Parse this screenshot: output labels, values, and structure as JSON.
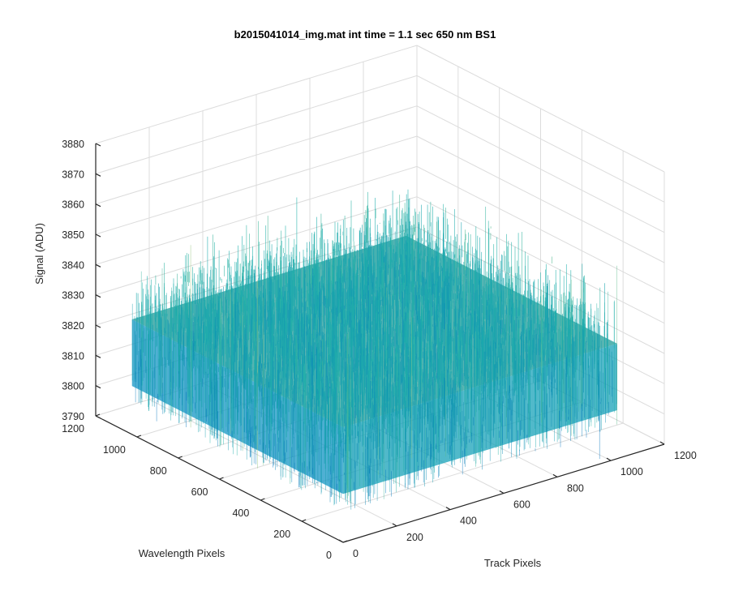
{
  "chart_data": {
    "type": "surface",
    "title": "b2015041014_img.mat int time = 1.1 sec  650 nm BS1",
    "xlabel": "Track Pixels",
    "ylabel": "Wavelength Pixels",
    "zlabel": "Signal (ADU)",
    "xlim": [
      0,
      1200
    ],
    "ylim": [
      0,
      1200
    ],
    "zlim": [
      3790,
      3880
    ],
    "x_ticks": [
      0,
      200,
      400,
      600,
      800,
      1000,
      1200
    ],
    "y_ticks": [
      0,
      200,
      400,
      600,
      800,
      1000,
      1200
    ],
    "z_ticks": [
      3790,
      3800,
      3810,
      3820,
      3830,
      3840,
      3850,
      3860,
      3870,
      3880
    ],
    "surface": {
      "x_range": [
        0,
        1024
      ],
      "y_range": [
        0,
        1024
      ],
      "mean": 3828,
      "noise_min": 3800,
      "noise_max": 3872,
      "colormap": "parula"
    },
    "grid": true,
    "colors": {
      "low": "#0072bd",
      "mid": "#20b2aa",
      "high": "#e8d35a",
      "axis": "#262626",
      "grid": "#dcdcdc"
    }
  }
}
